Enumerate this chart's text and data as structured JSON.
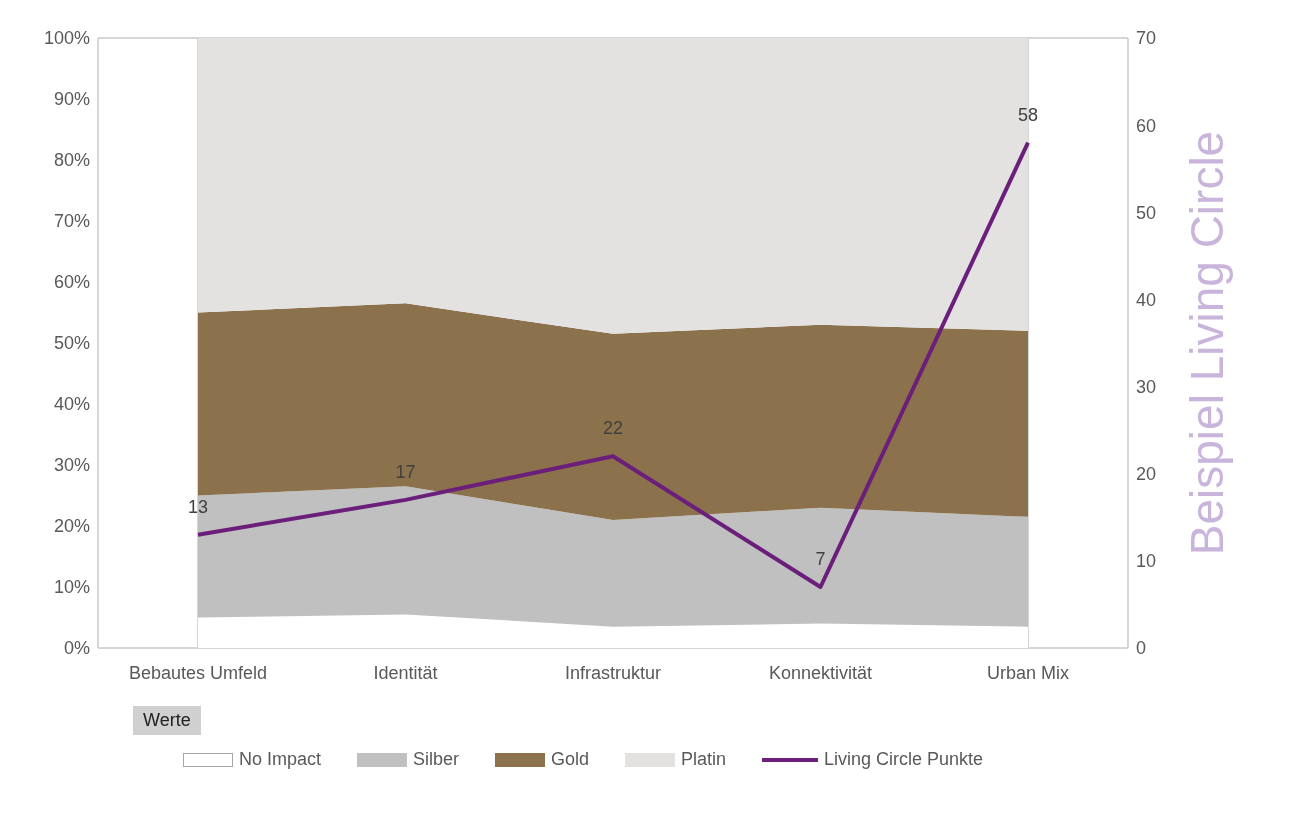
{
  "chart_data": {
    "type": "area",
    "stacked": true,
    "categories": [
      "Bebautes Umfeld",
      "Identität",
      "Infrastruktur",
      "Konnektivität",
      "Urban Mix"
    ],
    "series": [
      {
        "name": "No Impact",
        "color": "#ffffff",
        "values": [
          5,
          5.5,
          3.5,
          4,
          3.5
        ]
      },
      {
        "name": "Silber",
        "color": "#c0c0c0",
        "values": [
          20,
          21,
          17.5,
          19,
          18
        ]
      },
      {
        "name": "Gold",
        "color": "#8b714c",
        "values": [
          30,
          30,
          30.5,
          30,
          30.5
        ]
      },
      {
        "name": "Platin",
        "color": "#e4e2e1",
        "values": [
          45,
          43.5,
          48.5,
          47,
          48
        ]
      },
      {
        "name": "Living Circle Punkte",
        "type": "line",
        "axis": "y2",
        "color": "#6b1f7b",
        "values": [
          13,
          17,
          22,
          7,
          58
        ],
        "value_labels": [
          "13",
          "17",
          "22",
          "7",
          "58"
        ]
      }
    ],
    "ylim": [
      0,
      100
    ],
    "yticks": [
      {
        "value": 0,
        "label": "0%"
      },
      {
        "value": 10,
        "label": "10%"
      },
      {
        "value": 20,
        "label": "20%"
      },
      {
        "value": 30,
        "label": "30%"
      },
      {
        "value": 40,
        "label": "40%"
      },
      {
        "value": 50,
        "label": "50%"
      },
      {
        "value": 60,
        "label": "60%"
      },
      {
        "value": 70,
        "label": "70%"
      },
      {
        "value": 80,
        "label": "80%"
      },
      {
        "value": 90,
        "label": "90%"
      },
      {
        "value": 100,
        "label": "100%"
      }
    ],
    "y2lim": [
      0,
      70
    ],
    "y2ticks": [
      0,
      10,
      20,
      30,
      40,
      50,
      60,
      70
    ],
    "y2label": "Beispiel Living Circle",
    "annotations": [
      "Werte"
    ],
    "grid": true,
    "legend": "bottom",
    "marker": "none"
  }
}
